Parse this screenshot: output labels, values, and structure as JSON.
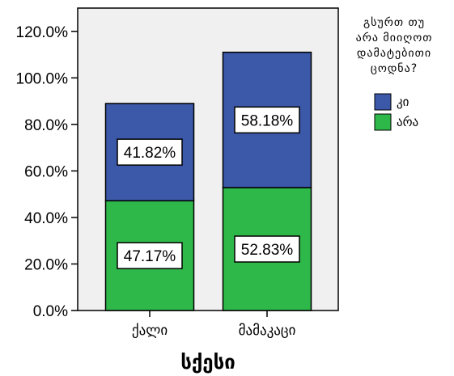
{
  "chart_data": {
    "type": "bar",
    "stacked": true,
    "categories": [
      "ქალი",
      "მამაკაცი"
    ],
    "series": [
      {
        "name": "არა",
        "values": [
          47.17,
          52.83
        ],
        "labels": [
          "47.17%",
          "52.83%"
        ],
        "color": "#2fb84a"
      },
      {
        "name": "კი",
        "values": [
          41.82,
          58.18
        ],
        "labels": [
          "41.82%",
          "58.18%"
        ],
        "color": "#3c58a8"
      }
    ],
    "title": "",
    "xlabel": "სქესი",
    "ylabel": "",
    "ylim": [
      0,
      130
    ],
    "yticks": [
      0,
      20,
      40,
      60,
      80,
      100,
      120
    ],
    "ytick_labels": [
      "0.0%",
      "20.0%",
      "40.0%",
      "60.0%",
      "80.0%",
      "100.0%",
      "120.0%"
    ],
    "legend": {
      "title_lines": [
        "გსურთ თუ",
        "არა მიიღოთ",
        "დამატებითი",
        "ცოდნა?"
      ],
      "entries": [
        {
          "label": "კი",
          "color": "#3c58a8"
        },
        {
          "label": "არა",
          "color": "#2fb84a"
        }
      ],
      "placement": "right"
    },
    "plot_background": "#f0f0f0",
    "grid": false
  }
}
